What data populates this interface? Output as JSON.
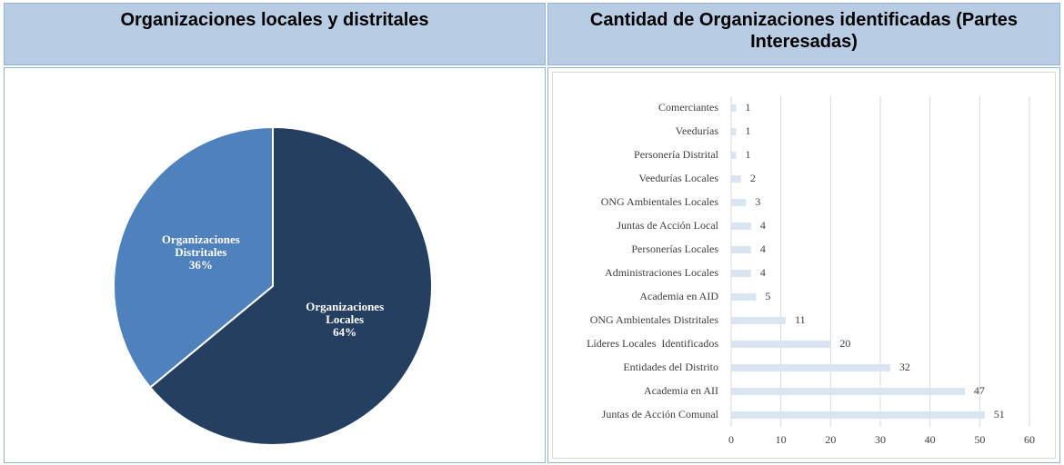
{
  "chart_data": [
    {
      "type": "pie",
      "title": "Organizaciones locales y distritales",
      "categories": [
        "Organizaciones Locales",
        "Organizaciones Distritales"
      ],
      "values": [
        64,
        36
      ],
      "value_labels": [
        "64%",
        "36%"
      ],
      "colors": [
        "#243f60",
        "#4f81bd"
      ]
    },
    {
      "type": "barh",
      "title": "Cantidad de Organizaciones identificadas (Partes Interesadas)",
      "categories": [
        "Comerciantes",
        "Veedurías",
        "Personería Distrital",
        "Veedurías Locales",
        "ONG Ambientales Locales",
        "Juntas de Acción Local",
        "Personerías Locales",
        "Administraciones Locales",
        "Academia en AID",
        "ONG Ambientales Distritales",
        "Líderes Locales  Identificados",
        "Entidades del Distrito",
        "Academia en AII",
        "Juntas de Acción Comunal"
      ],
      "values": [
        1,
        1,
        1,
        2,
        3,
        4,
        4,
        4,
        5,
        11,
        20,
        32,
        47,
        51
      ],
      "color": "#dbe5f1",
      "xlim": [
        0,
        60
      ],
      "xticks": [
        0,
        10,
        20,
        30,
        40,
        50,
        60
      ],
      "grid": true
    }
  ]
}
